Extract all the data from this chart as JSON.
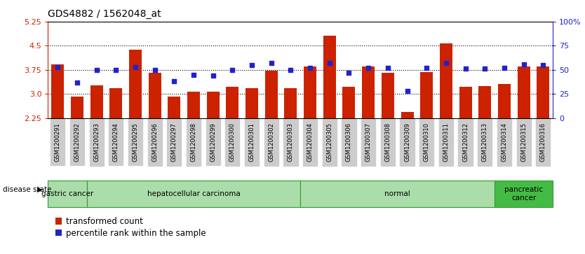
{
  "title": "GDS4882 / 1562048_at",
  "samples": [
    "GSM1200291",
    "GSM1200292",
    "GSM1200293",
    "GSM1200294",
    "GSM1200295",
    "GSM1200296",
    "GSM1200297",
    "GSM1200298",
    "GSM1200299",
    "GSM1200300",
    "GSM1200301",
    "GSM1200302",
    "GSM1200303",
    "GSM1200304",
    "GSM1200305",
    "GSM1200306",
    "GSM1200307",
    "GSM1200308",
    "GSM1200309",
    "GSM1200310",
    "GSM1200311",
    "GSM1200312",
    "GSM1200313",
    "GSM1200314",
    "GSM1200315",
    "GSM1200316"
  ],
  "bar_values": [
    3.92,
    2.93,
    3.27,
    3.18,
    4.38,
    3.65,
    2.93,
    3.07,
    3.08,
    3.22,
    3.17,
    3.72,
    3.17,
    3.85,
    4.82,
    3.23,
    3.85,
    3.67,
    2.45,
    3.68,
    4.58,
    3.22,
    3.25,
    3.32,
    3.85,
    3.85
  ],
  "percentile_values": [
    53,
    37,
    50,
    50,
    53,
    50,
    38,
    45,
    44,
    50,
    55,
    57,
    50,
    52,
    57,
    47,
    52,
    52,
    28,
    52,
    57,
    51,
    51,
    52,
    56,
    55
  ],
  "disease_groups": [
    {
      "label": "gastric cancer",
      "start": 0,
      "end": 1
    },
    {
      "label": "hepatocellular carcinoma",
      "start": 2,
      "end": 12
    },
    {
      "label": "normal",
      "start": 13,
      "end": 22
    },
    {
      "label": "pancreatic\ncancer",
      "start": 23,
      "end": 25
    }
  ],
  "bar_color": "#cc2200",
  "percentile_color": "#2222cc",
  "y_min": 2.25,
  "y_max": 5.25,
  "y_ticks_left": [
    2.25,
    3.0,
    3.75,
    4.5,
    5.25
  ],
  "right_y_ticks": [
    0,
    25,
    50,
    75,
    100
  ],
  "right_y_labels": [
    "0",
    "25",
    "50",
    "75",
    "100%"
  ],
  "grid_lines": [
    3.0,
    3.75,
    4.5
  ],
  "group_light_color": "#aaddaa",
  "group_dark_color": "#44bb44",
  "group_border_color": "#339933",
  "xtick_bg": "#cccccc",
  "disease_label_color": "#000000",
  "legend_red_label": "transformed count",
  "legend_blue_label": "percentile rank within the sample"
}
